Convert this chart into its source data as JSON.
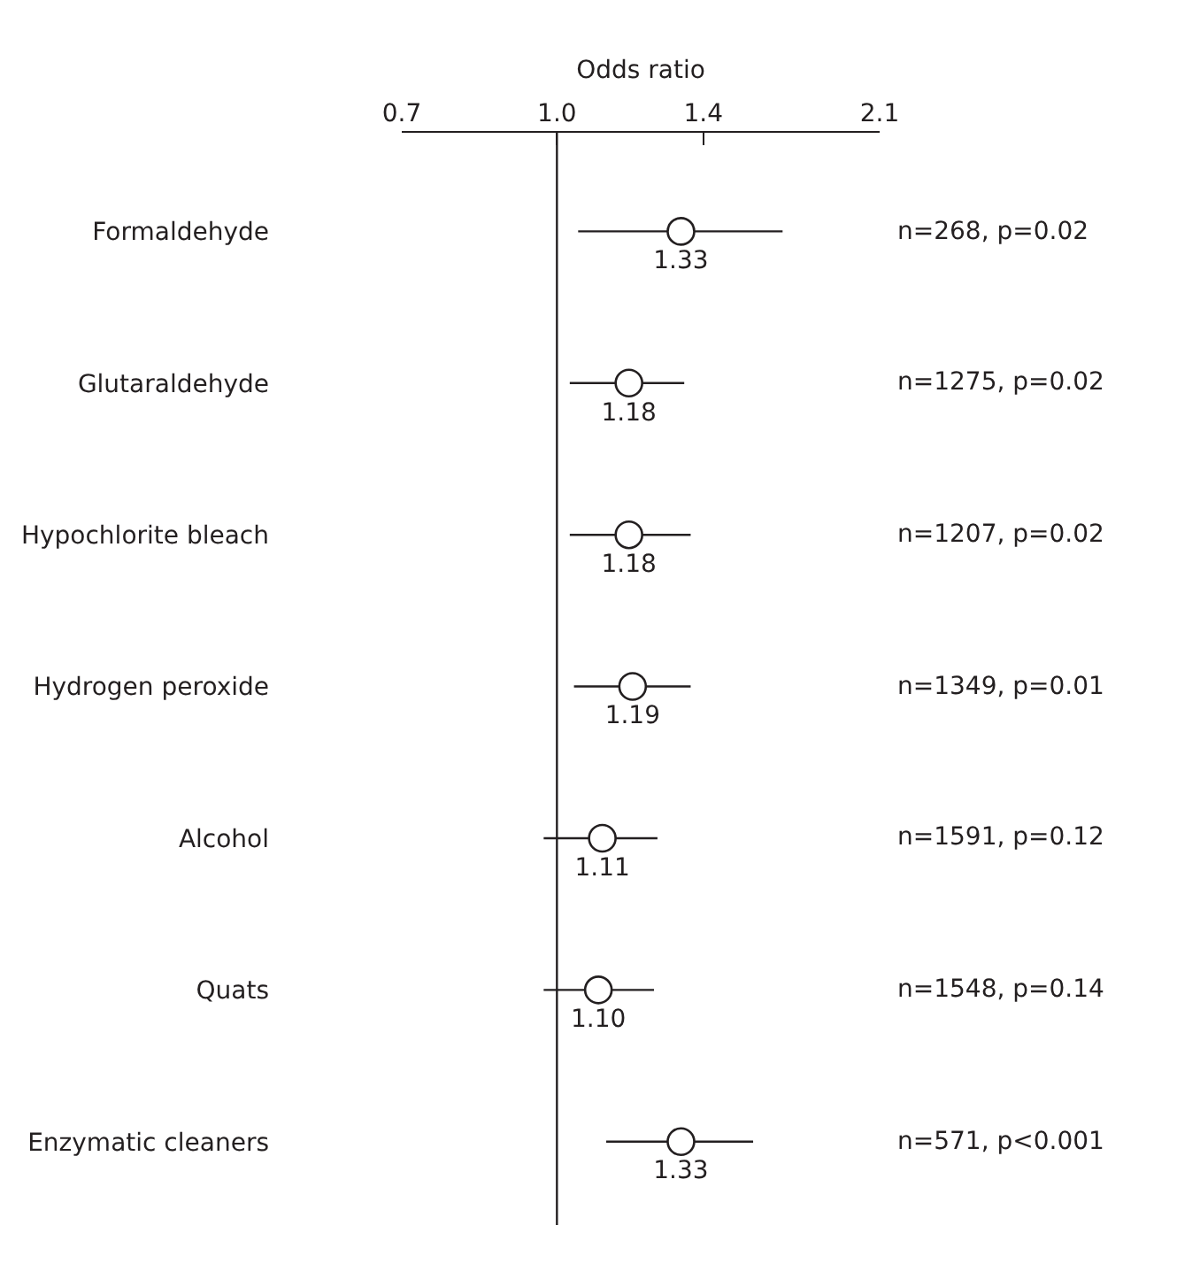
{
  "chart_data": {
    "type": "scatter",
    "orientation": "horizontal",
    "xlabel": "Odds ratio",
    "categories": [
      "Formaldehyde",
      "Glutaraldehyde",
      "Hypochlorite bleach",
      "Hydrogen peroxide",
      "Alcohol",
      "Quats",
      "Enzymatic cleaners"
    ],
    "series": [
      {
        "color": "#231f20",
        "values": [
          1.33,
          1.18,
          1.18,
          1.19,
          1.11,
          1.1,
          1.33
        ],
        "errors": [
          [
            1.05,
            1.68
          ],
          [
            1.03,
            1.34
          ],
          [
            1.03,
            1.36
          ],
          [
            1.04,
            1.36
          ],
          [
            0.97,
            1.26
          ],
          [
            0.97,
            1.25
          ],
          [
            1.12,
            1.57
          ]
        ],
        "value_labels": [
          "1.33",
          "1.18",
          "1.18",
          "1.19",
          "1.11",
          "1.10",
          "1.33"
        ]
      }
    ],
    "log": "x",
    "xlim": [
      0.7,
      2.1
    ],
    "xticks": [
      0.7,
      {
        "value": 1,
        "label": "1.0"
      },
      1.4,
      2.1
    ],
    "ref_lines": [
      {
        "axis": "x",
        "value": 1.0,
        "color": "#231f20"
      }
    ],
    "annotations": [
      "n=268, p=0.02",
      "n=1275, p=0.02",
      "n=1207, p=0.02",
      "n=1349, p=0.01",
      "n=1591, p=0.12",
      "n=1548, p=0.14",
      "n=571, p<0.001"
    ],
    "marker": "circle"
  }
}
